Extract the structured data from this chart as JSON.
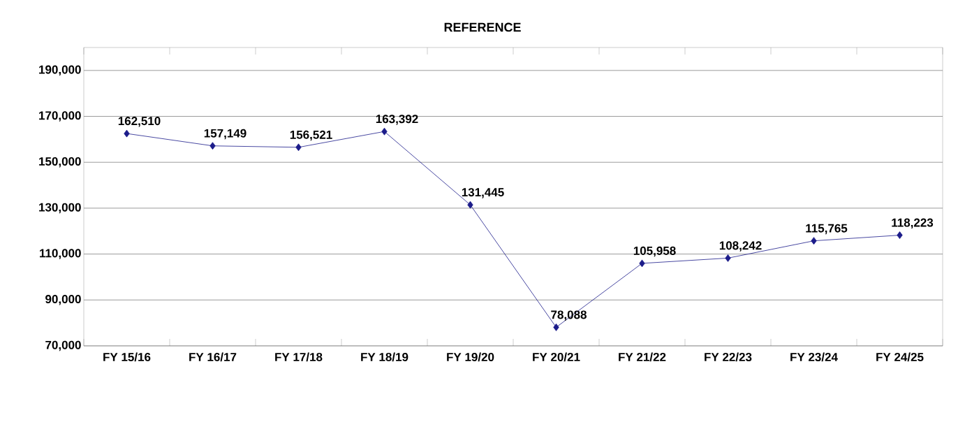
{
  "chart_data": {
    "type": "line",
    "title": "REFERENCE",
    "categories": [
      "FY 15/16",
      "FY 16/17",
      "FY 17/18",
      "FY 18/19",
      "FY 19/20",
      "FY 20/21",
      "FY 21/22",
      "FY 22/23",
      "FY 23/24",
      "FY 24/25"
    ],
    "values": [
      162510,
      157149,
      156521,
      163392,
      131445,
      78088,
      105958,
      108242,
      115765,
      118223
    ],
    "value_labels": [
      "162,510",
      "157,149",
      "156,521",
      "163,392",
      "131,445",
      "78,088",
      "105,958",
      "108,242",
      "115,765",
      "118,223"
    ],
    "color": "#1c1c8a",
    "marker": "diamond",
    "grid": "y",
    "ylim": [
      70000,
      200000
    ],
    "yticks": [
      {
        "value": 70000,
        "label": "70,000"
      },
      {
        "value": 90000,
        "label": "90,000"
      },
      {
        "value": 110000,
        "label": "110,000"
      },
      {
        "value": 130000,
        "label": "130,000"
      },
      {
        "value": 150000,
        "label": "150,000"
      },
      {
        "value": 170000,
        "label": "170,000"
      },
      {
        "value": 190000,
        "label": "190,000"
      }
    ]
  }
}
